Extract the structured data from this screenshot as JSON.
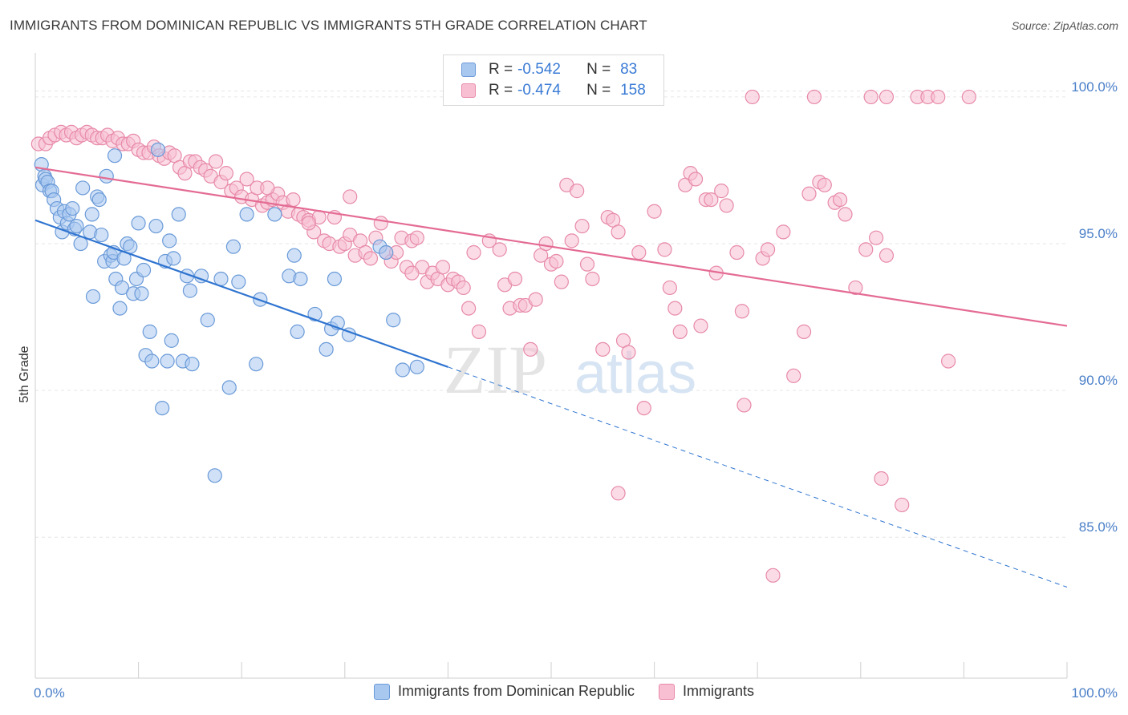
{
  "title": "IMMIGRANTS FROM DOMINICAN REPUBLIC VS IMMIGRANTS 5TH GRADE CORRELATION CHART",
  "source": "Source: ZipAtlas.com",
  "watermark": {
    "zip": "ZIP",
    "atlas": "atlas"
  },
  "legend": {
    "r_label": "R =",
    "n_label": "N =",
    "rows": [
      {
        "r": "-0.542",
        "n": "83",
        "color": "#a9c8f0",
        "stroke": "#6a9ad8"
      },
      {
        "r": "-0.474",
        "n": "158",
        "color": "#f8bfd2",
        "stroke": "#e78aa8"
      }
    ]
  },
  "bottom_legend": [
    {
      "label": "Immigrants from Dominican Republic",
      "color": "#a9c8f0",
      "stroke": "#6a9ad8"
    },
    {
      "label": "Immigrants",
      "color": "#f8bfd2",
      "stroke": "#e78aa8"
    }
  ],
  "chart_data": {
    "type": "scatter",
    "title": "IMMIGRANTS FROM DOMINICAN REPUBLIC VS IMMIGRANTS 5TH GRADE CORRELATION CHART",
    "xlabel": "",
    "ylabel": "5th Grade",
    "xlim": [
      0,
      100
    ],
    "ylim": [
      80.2,
      101.5
    ],
    "x_tick_labels": [
      "0.0%",
      "100.0%"
    ],
    "y_ticks": [
      85.0,
      90.0,
      95.0,
      100.0
    ],
    "y_tick_labels": [
      "85.0%",
      "90.0%",
      "95.0%",
      "100.0%"
    ],
    "grid": true,
    "legend_position": "top-center",
    "series": [
      {
        "name": "Immigrants from Dominican Republic",
        "color": "#a9c8f0",
        "stroke": "#6a9ad8",
        "line_color": "#2f74d0",
        "trend": {
          "x0": 0,
          "y0": 95.8,
          "x1": 40,
          "y1": 90.8,
          "dashed_to_x": 100,
          "dashed_to_y": 83.3
        },
        "points": [
          [
            0.6,
            97.7
          ],
          [
            0.7,
            97.0
          ],
          [
            0.9,
            97.3
          ],
          [
            1.0,
            97.2
          ],
          [
            1.2,
            97.1
          ],
          [
            1.4,
            96.8
          ],
          [
            1.6,
            96.8
          ],
          [
            1.8,
            96.5
          ],
          [
            2.1,
            96.2
          ],
          [
            2.4,
            95.9
          ],
          [
            2.6,
            95.4
          ],
          [
            2.8,
            96.1
          ],
          [
            3.1,
            95.7
          ],
          [
            3.3,
            96.0
          ],
          [
            3.6,
            96.2
          ],
          [
            3.8,
            95.5
          ],
          [
            4.0,
            95.6
          ],
          [
            4.4,
            95.0
          ],
          [
            4.6,
            96.9
          ],
          [
            5.3,
            95.4
          ],
          [
            5.5,
            96.0
          ],
          [
            5.6,
            93.2
          ],
          [
            6.0,
            96.6
          ],
          [
            6.2,
            96.5
          ],
          [
            6.4,
            95.3
          ],
          [
            6.7,
            94.4
          ],
          [
            6.9,
            97.3
          ],
          [
            7.3,
            94.6
          ],
          [
            7.5,
            94.4
          ],
          [
            7.6,
            94.7
          ],
          [
            7.7,
            98.0
          ],
          [
            7.8,
            93.8
          ],
          [
            8.2,
            92.8
          ],
          [
            8.4,
            93.5
          ],
          [
            8.6,
            94.5
          ],
          [
            8.9,
            95.0
          ],
          [
            9.2,
            94.9
          ],
          [
            9.5,
            93.3
          ],
          [
            9.8,
            93.8
          ],
          [
            10.0,
            95.7
          ],
          [
            10.3,
            93.3
          ],
          [
            10.5,
            94.1
          ],
          [
            10.7,
            91.2
          ],
          [
            11.1,
            92.0
          ],
          [
            11.3,
            91.0
          ],
          [
            11.7,
            95.6
          ],
          [
            11.9,
            98.2
          ],
          [
            12.3,
            89.4
          ],
          [
            12.6,
            94.4
          ],
          [
            12.8,
            91.0
          ],
          [
            13.0,
            95.1
          ],
          [
            13.2,
            91.7
          ],
          [
            13.4,
            94.5
          ],
          [
            13.9,
            96.0
          ],
          [
            14.3,
            91.0
          ],
          [
            14.7,
            93.9
          ],
          [
            15.0,
            93.4
          ],
          [
            15.2,
            90.9
          ],
          [
            16.1,
            93.9
          ],
          [
            16.7,
            92.4
          ],
          [
            17.4,
            87.1
          ],
          [
            18.0,
            93.8
          ],
          [
            18.8,
            90.1
          ],
          [
            19.2,
            94.9
          ],
          [
            19.7,
            93.7
          ],
          [
            20.5,
            96.0
          ],
          [
            21.4,
            90.9
          ],
          [
            21.8,
            93.1
          ],
          [
            23.2,
            96.0
          ],
          [
            24.6,
            93.9
          ],
          [
            25.1,
            94.6
          ],
          [
            25.4,
            92.0
          ],
          [
            25.7,
            93.8
          ],
          [
            27.1,
            92.6
          ],
          [
            28.2,
            91.4
          ],
          [
            28.7,
            92.1
          ],
          [
            29.0,
            93.8
          ],
          [
            29.3,
            92.3
          ],
          [
            30.4,
            91.9
          ],
          [
            33.4,
            94.9
          ],
          [
            34.0,
            94.7
          ],
          [
            34.7,
            92.4
          ],
          [
            35.6,
            90.7
          ],
          [
            37.0,
            90.8
          ]
        ]
      },
      {
        "name": "Immigrants",
        "color": "#f8bfd2",
        "stroke": "#e78aa8",
        "line_color": "#e46b93",
        "trend": {
          "x0": 0,
          "y0": 97.6,
          "x1": 100,
          "y1": 92.2
        },
        "points": [
          [
            0.3,
            98.4
          ],
          [
            1.0,
            98.4
          ],
          [
            1.4,
            98.6
          ],
          [
            1.9,
            98.7
          ],
          [
            2.5,
            98.8
          ],
          [
            3.0,
            98.7
          ],
          [
            3.5,
            98.8
          ],
          [
            4.0,
            98.6
          ],
          [
            4.5,
            98.7
          ],
          [
            5.0,
            98.8
          ],
          [
            5.5,
            98.7
          ],
          [
            6.0,
            98.6
          ],
          [
            6.5,
            98.6
          ],
          [
            7.0,
            98.7
          ],
          [
            7.5,
            98.5
          ],
          [
            8.0,
            98.6
          ],
          [
            8.5,
            98.4
          ],
          [
            9.0,
            98.4
          ],
          [
            9.5,
            98.5
          ],
          [
            10.0,
            98.2
          ],
          [
            10.5,
            98.1
          ],
          [
            11.0,
            98.1
          ],
          [
            11.5,
            98.3
          ],
          [
            12.0,
            98.0
          ],
          [
            12.5,
            97.9
          ],
          [
            13.0,
            98.1
          ],
          [
            13.5,
            98.0
          ],
          [
            14.0,
            97.6
          ],
          [
            14.5,
            97.4
          ],
          [
            15.0,
            97.8
          ],
          [
            15.5,
            97.8
          ],
          [
            16.0,
            97.6
          ],
          [
            16.5,
            97.5
          ],
          [
            17.0,
            97.3
          ],
          [
            17.5,
            97.8
          ],
          [
            18.0,
            97.1
          ],
          [
            18.5,
            97.4
          ],
          [
            19.0,
            96.8
          ],
          [
            19.5,
            96.9
          ],
          [
            20.0,
            96.6
          ],
          [
            20.5,
            97.2
          ],
          [
            21.0,
            96.5
          ],
          [
            21.5,
            96.9
          ],
          [
            22.0,
            96.3
          ],
          [
            22.5,
            96.4
          ],
          [
            23.0,
            96.5
          ],
          [
            23.5,
            96.7
          ],
          [
            24.0,
            96.4
          ],
          [
            24.5,
            96.1
          ],
          [
            25.0,
            96.5
          ],
          [
            25.5,
            96.0
          ],
          [
            26.0,
            95.9
          ],
          [
            26.5,
            95.8
          ],
          [
            27.0,
            95.4
          ],
          [
            27.5,
            95.9
          ],
          [
            28.0,
            95.1
          ],
          [
            28.5,
            95.0
          ],
          [
            29.0,
            95.9
          ],
          [
            29.5,
            94.9
          ],
          [
            30.0,
            95.0
          ],
          [
            30.5,
            95.3
          ],
          [
            31.0,
            94.6
          ],
          [
            31.5,
            95.1
          ],
          [
            32.0,
            94.7
          ],
          [
            32.5,
            94.5
          ],
          [
            33.0,
            95.2
          ],
          [
            33.5,
            95.7
          ],
          [
            34.0,
            94.7
          ],
          [
            34.5,
            94.4
          ],
          [
            35.0,
            94.7
          ],
          [
            35.5,
            95.2
          ],
          [
            36.0,
            94.2
          ],
          [
            36.5,
            95.1
          ],
          [
            37.0,
            95.2
          ],
          [
            37.5,
            94.2
          ],
          [
            38.0,
            93.7
          ],
          [
            38.5,
            94.0
          ],
          [
            39.0,
            93.8
          ],
          [
            39.5,
            94.2
          ],
          [
            40.0,
            93.6
          ],
          [
            40.5,
            93.8
          ],
          [
            41.0,
            93.7
          ],
          [
            41.5,
            93.5
          ],
          [
            42.0,
            92.8
          ],
          [
            42.5,
            94.7
          ],
          [
            43.0,
            92.0
          ],
          [
            44.0,
            95.1
          ],
          [
            45.0,
            94.8
          ],
          [
            45.5,
            93.6
          ],
          [
            46.0,
            92.8
          ],
          [
            46.5,
            93.8
          ],
          [
            47.0,
            92.9
          ],
          [
            47.5,
            92.9
          ],
          [
            48.0,
            91.4
          ],
          [
            48.5,
            93.1
          ],
          [
            49.0,
            94.6
          ],
          [
            49.5,
            95.0
          ],
          [
            50.0,
            94.3
          ],
          [
            50.5,
            94.4
          ],
          [
            51.0,
            93.7
          ],
          [
            51.5,
            97.0
          ],
          [
            52.0,
            95.1
          ],
          [
            53.0,
            95.6
          ],
          [
            53.5,
            94.3
          ],
          [
            54.0,
            93.8
          ],
          [
            55.0,
            91.4
          ],
          [
            55.5,
            95.9
          ],
          [
            56.0,
            95.8
          ],
          [
            56.5,
            95.4
          ],
          [
            57.0,
            91.7
          ],
          [
            57.5,
            91.3
          ],
          [
            58.5,
            94.7
          ],
          [
            59.0,
            89.4
          ],
          [
            60.0,
            96.1
          ],
          [
            61.0,
            94.8
          ],
          [
            61.5,
            93.5
          ],
          [
            62.0,
            92.8
          ],
          [
            62.5,
            92.0
          ],
          [
            63.0,
            97.0
          ],
          [
            63.5,
            97.4
          ],
          [
            64.0,
            97.2
          ],
          [
            64.5,
            92.2
          ],
          [
            65.0,
            96.5
          ],
          [
            65.5,
            96.5
          ],
          [
            66.0,
            94.0
          ],
          [
            66.5,
            96.8
          ],
          [
            67.0,
            96.3
          ],
          [
            68.0,
            94.7
          ],
          [
            68.5,
            92.7
          ],
          [
            68.7,
            89.5
          ],
          [
            69.5,
            100.0
          ],
          [
            70.5,
            94.5
          ],
          [
            71.0,
            94.8
          ],
          [
            71.5,
            83.7
          ],
          [
            72.5,
            95.4
          ],
          [
            73.5,
            90.5
          ],
          [
            74.5,
            92.0
          ],
          [
            75.0,
            96.7
          ],
          [
            75.5,
            100.0
          ],
          [
            76.0,
            97.1
          ],
          [
            76.5,
            97.0
          ],
          [
            77.5,
            96.4
          ],
          [
            78.0,
            96.5
          ],
          [
            78.5,
            96.0
          ],
          [
            79.5,
            93.5
          ],
          [
            80.5,
            94.8
          ],
          [
            81.0,
            100.0
          ],
          [
            81.5,
            95.2
          ],
          [
            82.5,
            94.6
          ],
          [
            82.0,
            87.0
          ],
          [
            82.5,
            100.0
          ],
          [
            84.0,
            86.1
          ],
          [
            85.5,
            100.0
          ],
          [
            86.5,
            100.0
          ],
          [
            87.5,
            100.0
          ],
          [
            88.5,
            91.0
          ],
          [
            90.5,
            100.0
          ],
          [
            56.5,
            86.5
          ],
          [
            52.5,
            96.8
          ],
          [
            30.5,
            96.6
          ],
          [
            36.5,
            94.0
          ],
          [
            22.5,
            96.9
          ],
          [
            26.5,
            95.7
          ]
        ]
      }
    ]
  }
}
